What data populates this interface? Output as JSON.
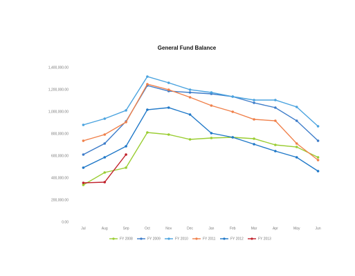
{
  "chart_data": {
    "type": "line",
    "title": "General Fund Balance",
    "categories": [
      "Jul",
      "Aug",
      "Sep",
      "Oct",
      "Nov",
      "Dec",
      "Jan",
      "Feb",
      "Mar",
      "Apr",
      "May",
      "Jun"
    ],
    "ylim": [
      0,
      1400000
    ],
    "yticks": [
      {
        "value": 0,
        "label": "0.00"
      },
      {
        "value": 200000,
        "label": "200,000.00"
      },
      {
        "value": 400000,
        "label": "400,000.00"
      },
      {
        "value": 600000,
        "label": "600,000.00"
      },
      {
        "value": 800000,
        "label": "800,000.00"
      },
      {
        "value": 1000000,
        "label": "1,000,000.00"
      },
      {
        "value": 1200000,
        "label": "1,200,000.00"
      },
      {
        "value": 1400000,
        "label": "1,400,000.00"
      }
    ],
    "series": [
      {
        "name": "FY 2008",
        "color": "#9acd32",
        "values": [
          337500,
          450000,
          493750,
          812500,
          793750,
          750000,
          762500,
          768750,
          756250,
          700000,
          681250,
          587500
        ]
      },
      {
        "name": "FY 2009",
        "color": "#3d7cc9",
        "values": [
          612500,
          712500,
          912500,
          1237500,
          1187500,
          1175000,
          1162500,
          1137500,
          1081250,
          1037500,
          918750,
          737500
        ]
      },
      {
        "name": "FY 2010",
        "color": "#4aa3df",
        "values": [
          881250,
          937500,
          1012500,
          1318750,
          1262500,
          1200000,
          1175000,
          1137500,
          1106250,
          1106250,
          1043750,
          868750
        ]
      },
      {
        "name": "FY 2011",
        "color": "#f0804a",
        "values": [
          737500,
          793750,
          906250,
          1250000,
          1200000,
          1131250,
          1056250,
          1000000,
          931250,
          918750,
          712500,
          562500
        ]
      },
      {
        "name": "FY 2012",
        "color": "#1f78c8",
        "values": [
          493750,
          587500,
          687500,
          1018750,
          1037500,
          975000,
          806250,
          768750,
          706250,
          643750,
          587500,
          462500
        ]
      },
      {
        "name": "FY 2013",
        "color": "#c0202a",
        "values": [
          356250,
          362500,
          612500,
          null,
          null,
          null,
          null,
          null,
          null,
          null,
          null,
          null
        ]
      }
    ]
  }
}
